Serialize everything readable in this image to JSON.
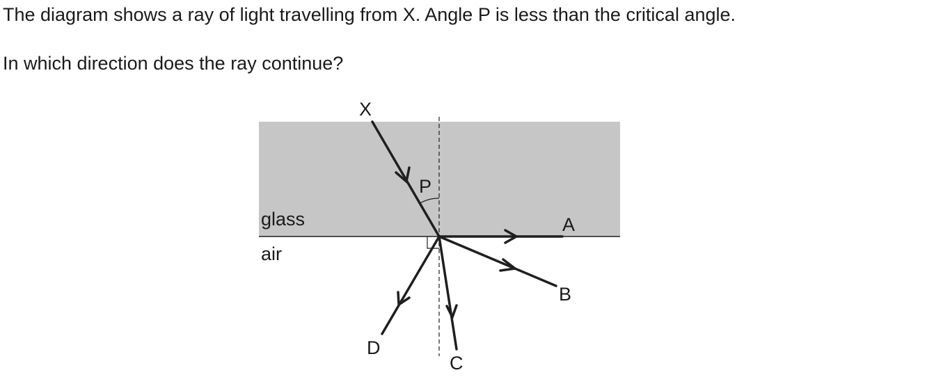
{
  "question": {
    "line1": "The diagram shows a ray of light travelling from X. Angle P is less than the critical angle.",
    "line2": "In which direction does the ray continue?"
  },
  "diagram": {
    "medium_top": "glass",
    "medium_bottom": "air",
    "source_label": "X",
    "angle_label": "P",
    "options": [
      "A",
      "B",
      "C",
      "D"
    ],
    "colors": {
      "glass_fill": "#c6c6c6",
      "ray": "#1f1f1f",
      "text": "#1a1a1a"
    }
  }
}
